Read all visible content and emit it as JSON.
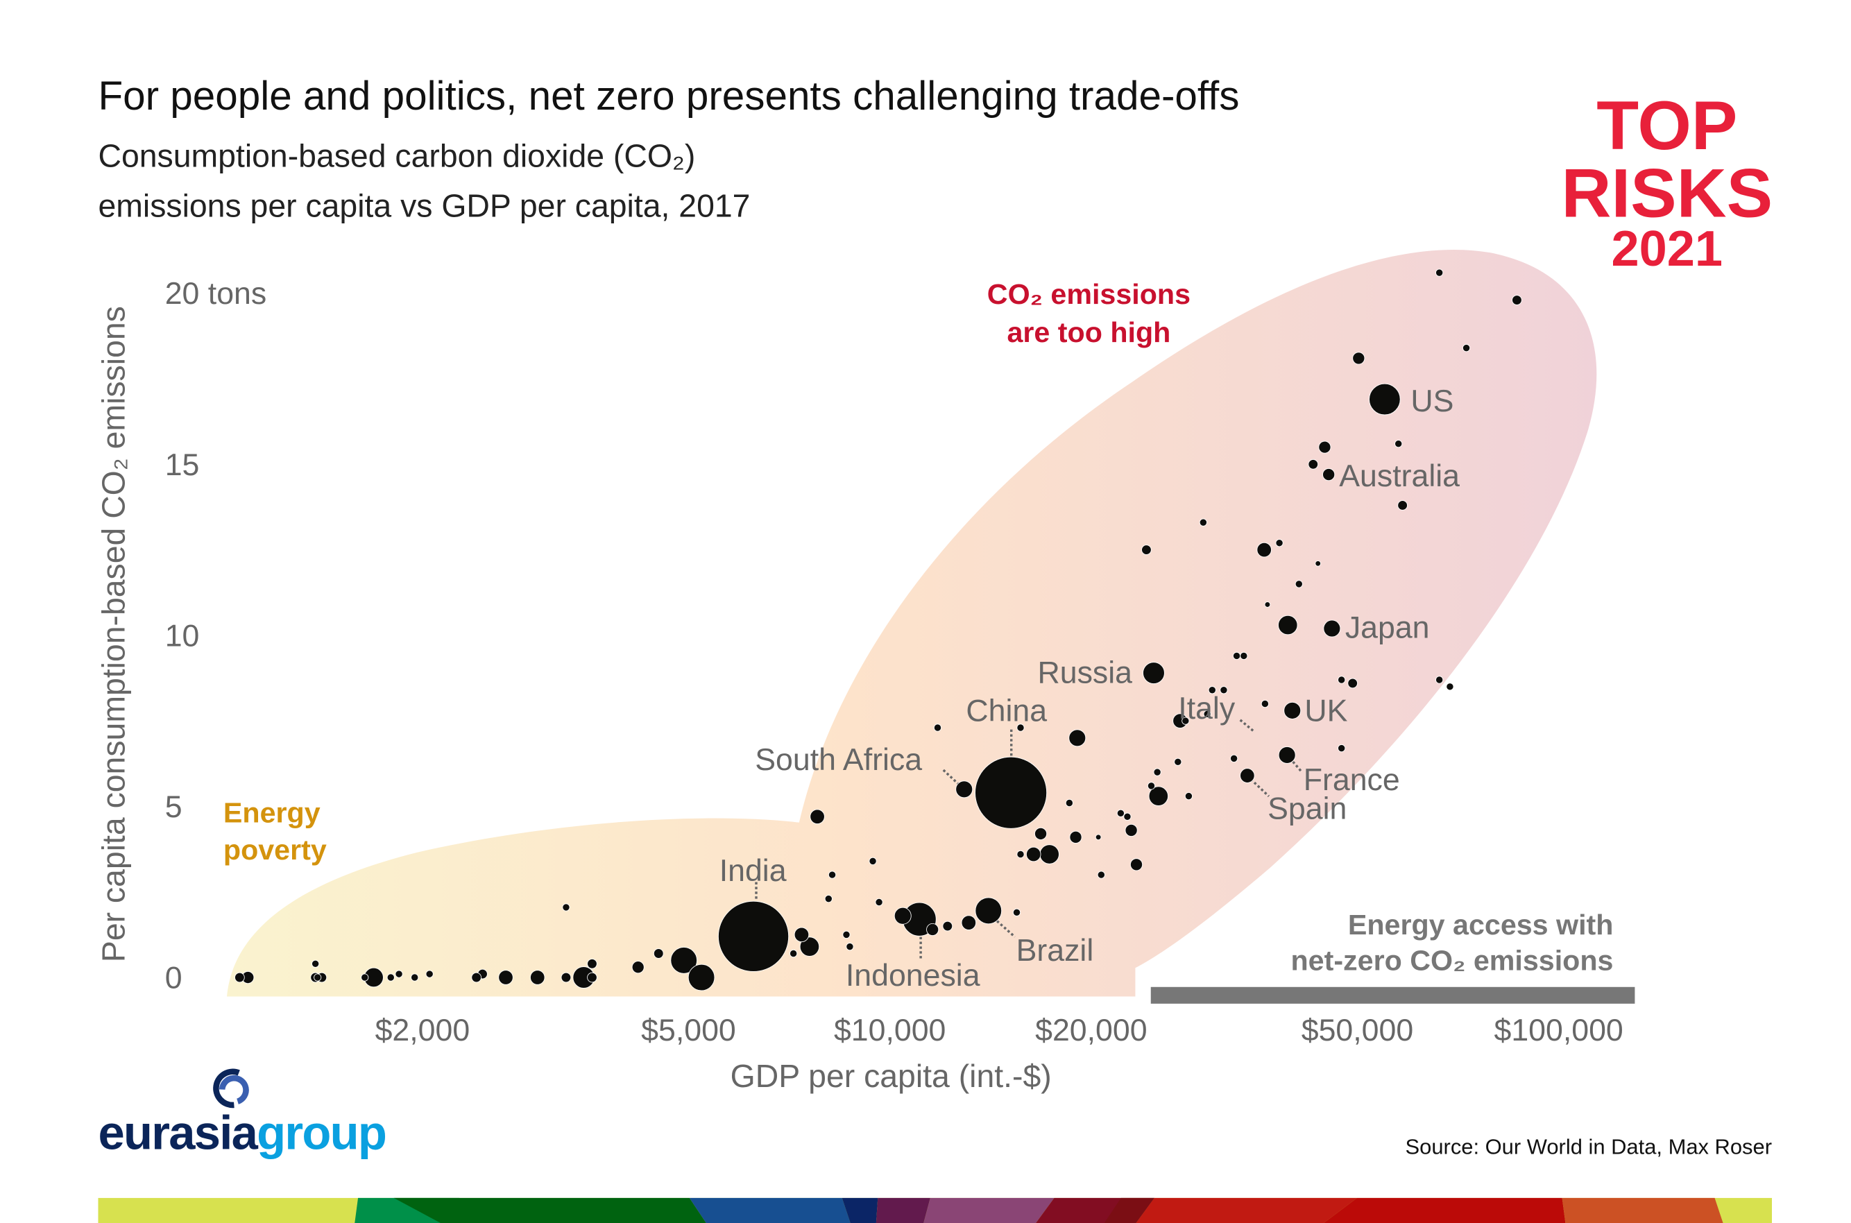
{
  "header": {
    "title": "For people and politics, net zero presents challenging trade-offs",
    "subtitle_line1": "Consumption-based carbon dioxide (CO₂)",
    "subtitle_line2": "emissions per capita vs GDP per capita, 2017"
  },
  "badge": {
    "line1": "TOP",
    "line2": "RISKS",
    "line3": "2021",
    "color": "#e8203a"
  },
  "logo": {
    "part1": "eurasia",
    "part2": "group",
    "color1": "#0b2559",
    "color2": "#0aa0e0"
  },
  "source": "Source: Our World in Data, Max Roser",
  "annotations": {
    "high_line1": "CO₂ emissions",
    "high_line2": "are too high",
    "high_color": "#c8102e",
    "poverty_line1": "Energy",
    "poverty_line2": "poverty",
    "poverty_color": "#d4930d",
    "access_line1": "Energy access with",
    "access_line2": "net-zero CO₂ emissions",
    "access_color": "#777777"
  },
  "chart_data": {
    "type": "scatter",
    "title": "Consumption-based carbon dioxide (CO₂) emissions per capita vs GDP per capita, 2017",
    "xlabel": "GDP per capita (int.-$)",
    "ylabel": "Per capita consumption-based CO₂ emissions",
    "x_scale": "log",
    "xlim": [
      1000,
      120000
    ],
    "ylim": [
      0,
      21
    ],
    "x_ticks": [
      {
        "value": 2000,
        "label": "$2,000"
      },
      {
        "value": 5000,
        "label": "$5,000"
      },
      {
        "value": 10000,
        "label": "$10,000"
      },
      {
        "value": 20000,
        "label": "$20,000"
      },
      {
        "value": 50000,
        "label": "$50,000"
      },
      {
        "value": 100000,
        "label": "$100,000"
      }
    ],
    "y_ticks": [
      {
        "value": 20,
        "label": "20 tons"
      },
      {
        "value": 15,
        "label": "15"
      },
      {
        "value": 10,
        "label": "10"
      },
      {
        "value": 5,
        "label": "5"
      },
      {
        "value": 0,
        "label": "0"
      }
    ],
    "grid": false,
    "size_encoding": "population (millions, approx.)",
    "points": [
      {
        "label": "US",
        "gdp": 53600,
        "co2": 16.9,
        "pop": 263
      },
      {
        "label": "Australia",
        "gdp": 44200,
        "co2": 14.7,
        "pop": 39
      },
      {
        "label": "Japan",
        "gdp": 44700,
        "co2": 10.2,
        "pop": 76
      },
      {
        "label": "UK",
        "gdp": 39000,
        "co2": 7.8,
        "pop": 76
      },
      {
        "label": "France",
        "gdp": 38300,
        "co2": 6.5,
        "pop": 76
      },
      {
        "label": "Spain",
        "gdp": 33400,
        "co2": 5.9,
        "pop": 56
      },
      {
        "label": "Italy",
        "gdp": 26500,
        "co2": 7.5,
        "pop": 56
      },
      {
        "label": "Russia",
        "gdp": 24200,
        "co2": 8.9,
        "pop": 126
      },
      {
        "label": "China",
        "gdp": 14800,
        "co2": 5.4,
        "pop": 1400
      },
      {
        "label": "South Africa",
        "gdp": 12600,
        "co2": 5.5,
        "pop": 76
      },
      {
        "label": "India",
        "gdp": 6100,
        "co2": 1.2,
        "pop": 1350
      },
      {
        "label": "Indonesia",
        "gdp": 10800,
        "co2": 1.7,
        "pop": 305
      },
      {
        "label": "Brazil",
        "gdp": 13700,
        "co2": 1.95,
        "pop": 188
      },
      {
        "gdp": 64700,
        "co2": 20.6,
        "pop": 14
      },
      {
        "gdp": 84500,
        "co2": 19.8,
        "pop": 25
      },
      {
        "gdp": 71000,
        "co2": 18.4,
        "pop": 14
      },
      {
        "gdp": 49000,
        "co2": 18.1,
        "pop": 39
      },
      {
        "gdp": 56200,
        "co2": 15.6,
        "pop": 14
      },
      {
        "gdp": 43600,
        "co2": 15.5,
        "pop": 39
      },
      {
        "gdp": 41900,
        "co2": 15.0,
        "pop": 25
      },
      {
        "gdp": 57000,
        "co2": 13.8,
        "pop": 25
      },
      {
        "gdp": 28700,
        "co2": 13.3,
        "pop": 14
      },
      {
        "gdp": 23600,
        "co2": 12.5,
        "pop": 25
      },
      {
        "gdp": 35400,
        "co2": 12.5,
        "pop": 56
      },
      {
        "gdp": 37300,
        "co2": 12.7,
        "pop": 14
      },
      {
        "gdp": 42600,
        "co2": 12.1,
        "pop": 8
      },
      {
        "gdp": 39900,
        "co2": 11.5,
        "pop": 14
      },
      {
        "gdp": 35800,
        "co2": 10.9,
        "pop": 8
      },
      {
        "gdp": 38400,
        "co2": 10.3,
        "pop": 100
      },
      {
        "gdp": 32200,
        "co2": 9.4,
        "pop": 14
      },
      {
        "gdp": 33000,
        "co2": 9.4,
        "pop": 14
      },
      {
        "gdp": 46200,
        "co2": 8.7,
        "pop": 14
      },
      {
        "gdp": 48000,
        "co2": 8.6,
        "pop": 25
      },
      {
        "gdp": 64700,
        "co2": 8.7,
        "pop": 14
      },
      {
        "gdp": 67100,
        "co2": 8.5,
        "pop": 14
      },
      {
        "gdp": 29600,
        "co2": 8.4,
        "pop": 14
      },
      {
        "gdp": 30800,
        "co2": 8.4,
        "pop": 14
      },
      {
        "gdp": 35500,
        "co2": 8.0,
        "pop": 14
      },
      {
        "gdp": 29100,
        "co2": 7.7,
        "pop": 14
      },
      {
        "gdp": 27000,
        "co2": 7.5,
        "pop": 14
      },
      {
        "gdp": 46200,
        "co2": 6.7,
        "pop": 14
      },
      {
        "gdp": 18600,
        "co2": 7.0,
        "pop": 76
      },
      {
        "gdp": 11500,
        "co2": 7.3,
        "pop": 14
      },
      {
        "gdp": 15300,
        "co2": 7.3,
        "pop": 14
      },
      {
        "gdp": 26300,
        "co2": 6.3,
        "pop": 14
      },
      {
        "gdp": 31900,
        "co2": 6.4,
        "pop": 14
      },
      {
        "gdp": 24500,
        "co2": 6.0,
        "pop": 14
      },
      {
        "gdp": 24000,
        "co2": 5.6,
        "pop": 14
      },
      {
        "gdp": 27300,
        "co2": 5.3,
        "pop": 14
      },
      {
        "gdp": 24600,
        "co2": 5.3,
        "pop": 100
      },
      {
        "gdp": 18100,
        "co2": 5.1,
        "pop": 14
      },
      {
        "gdp": 21600,
        "co2": 4.8,
        "pop": 14
      },
      {
        "gdp": 22100,
        "co2": 4.7,
        "pop": 14
      },
      {
        "gdp": 22400,
        "co2": 4.3,
        "pop": 39
      },
      {
        "gdp": 16400,
        "co2": 4.2,
        "pop": 39
      },
      {
        "gdp": 18500,
        "co2": 4.1,
        "pop": 39
      },
      {
        "gdp": 20000,
        "co2": 4.1,
        "pop": 8
      },
      {
        "gdp": 22800,
        "co2": 3.3,
        "pop": 39
      },
      {
        "gdp": 16900,
        "co2": 3.6,
        "pop": 100
      },
      {
        "gdp": 16000,
        "co2": 3.6,
        "pop": 56
      },
      {
        "gdp": 15300,
        "co2": 3.6,
        "pop": 14
      },
      {
        "gdp": 20200,
        "co2": 3.0,
        "pop": 14
      },
      {
        "gdp": 7600,
        "co2": 4.7,
        "pop": 56
      },
      {
        "gdp": 9200,
        "co2": 3.4,
        "pop": 14
      },
      {
        "gdp": 8000,
        "co2": 3.0,
        "pop": 14
      },
      {
        "gdp": 7900,
        "co2": 2.3,
        "pop": 14
      },
      {
        "gdp": 9400,
        "co2": 2.2,
        "pop": 14
      },
      {
        "gdp": 10200,
        "co2": 1.8,
        "pop": 76
      },
      {
        "gdp": 11300,
        "co2": 1.4,
        "pop": 39
      },
      {
        "gdp": 11900,
        "co2": 1.5,
        "pop": 25
      },
      {
        "gdp": 12800,
        "co2": 1.6,
        "pop": 56
      },
      {
        "gdp": 15100,
        "co2": 1.9,
        "pop": 14
      },
      {
        "gdp": 8400,
        "co2": 1.25,
        "pop": 14
      },
      {
        "gdp": 8500,
        "co2": 0.9,
        "pop": 14
      },
      {
        "gdp": 7200,
        "co2": 1.25,
        "pop": 56
      },
      {
        "gdp": 7400,
        "co2": 0.9,
        "pop": 100
      },
      {
        "gdp": 7000,
        "co2": 0.7,
        "pop": 14
      },
      {
        "gdp": 4800,
        "co2": 0.5,
        "pop": 188
      },
      {
        "gdp": 5100,
        "co2": 0.0,
        "pop": 188
      },
      {
        "gdp": 4400,
        "co2": 0.7,
        "pop": 25
      },
      {
        "gdp": 4100,
        "co2": 0.3,
        "pop": 39
      },
      {
        "gdp": 3200,
        "co2": 2.05,
        "pop": 14
      },
      {
        "gdp": 3500,
        "co2": 0.4,
        "pop": 25
      },
      {
        "gdp": 3400,
        "co2": 0.0,
        "pop": 126
      },
      {
        "gdp": 3500,
        "co2": 0.0,
        "pop": 25
      },
      {
        "gdp": 3200,
        "co2": 0.0,
        "pop": 25
      },
      {
        "gdp": 2900,
        "co2": 0.0,
        "pop": 56
      },
      {
        "gdp": 2600,
        "co2": 0.0,
        "pop": 56
      },
      {
        "gdp": 2400,
        "co2": 0.1,
        "pop": 25
      },
      {
        "gdp": 2350,
        "co2": 0.0,
        "pop": 25
      },
      {
        "gdp": 2000,
        "co2": 0.1,
        "pop": 14
      },
      {
        "gdp": 1800,
        "co2": 0.1,
        "pop": 14
      },
      {
        "gdp": 1900,
        "co2": 0.0,
        "pop": 14
      },
      {
        "gdp": 1750,
        "co2": 0.0,
        "pop": 14
      },
      {
        "gdp": 1650,
        "co2": 0.0,
        "pop": 100
      },
      {
        "gdp": 1600,
        "co2": 0.0,
        "pop": 14
      },
      {
        "gdp": 1380,
        "co2": 0.0,
        "pop": 25
      },
      {
        "gdp": 1350,
        "co2": 0.4,
        "pop": 14
      },
      {
        "gdp": 1350,
        "co2": 0.0,
        "pop": 25
      },
      {
        "gdp": 1360,
        "co2": 0.0,
        "pop": 14
      },
      {
        "gdp": 1070,
        "co2": 0.0,
        "pop": 39
      },
      {
        "gdp": 1040,
        "co2": 0.0,
        "pop": 25
      }
    ]
  }
}
